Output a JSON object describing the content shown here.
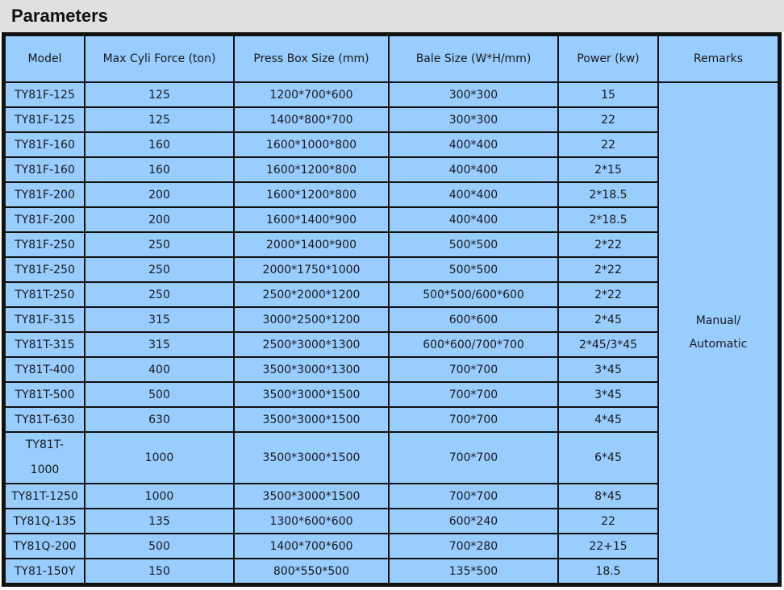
{
  "header": {
    "title": "Parameters"
  },
  "table": {
    "columns": [
      "Model",
      "Max Cyli Force  (ton)",
      "Press Box Size (mm)",
      "Bale Size  (W*H/mm)",
      "Power  (kw)",
      "Remarks"
    ],
    "rows": [
      [
        "TY81F-125",
        "125",
        "1200*700*600",
        "300*300",
        "15"
      ],
      [
        "TY81F-125",
        "125",
        "1400*800*700",
        "300*300",
        "22"
      ],
      [
        "TY81F-160",
        "160",
        "1600*1000*800",
        "400*400",
        "22"
      ],
      [
        "TY81F-160",
        "160",
        "1600*1200*800",
        "400*400",
        "2*15"
      ],
      [
        "TY81F-200",
        "200",
        "1600*1200*800",
        "400*400",
        "2*18.5"
      ],
      [
        "TY81F-200",
        "200",
        "1600*1400*900",
        "400*400",
        "2*18.5"
      ],
      [
        "TY81F-250",
        "250",
        "2000*1400*900",
        "500*500",
        "2*22"
      ],
      [
        "TY81F-250",
        "250",
        "2000*1750*1000",
        "500*500",
        "2*22"
      ],
      [
        "TY81T-250",
        "250",
        "2500*2000*1200",
        "500*500/600*600",
        "2*22"
      ],
      [
        "TY81F-315",
        "315",
        "3000*2500*1200",
        "600*600",
        "2*45"
      ],
      [
        "TY81T-315",
        "315",
        "2500*3000*1300",
        "600*600/700*700",
        "2*45/3*45"
      ],
      [
        "TY81T-400",
        "400",
        "3500*3000*1300",
        "700*700",
        "3*45"
      ],
      [
        "TY81T-500",
        "500",
        "3500*3000*1500",
        "700*700",
        "3*45"
      ],
      [
        "TY81T-630",
        "630",
        "3500*3000*1500",
        "700*700",
        "4*45"
      ],
      [
        "TY81T-1000",
        "1000",
        "3500*3000*1500",
        "700*700",
        "6*45"
      ],
      [
        "TY81T-1250",
        "1000",
        "3500*3000*1500",
        "700*700",
        "8*45"
      ],
      [
        "TY81Q-135",
        "135",
        "1300*600*600",
        "600*240",
        "22"
      ],
      [
        "TY81Q-200",
        "500",
        "1400*700*600",
        "700*280",
        "22+15"
      ],
      [
        "TY81-150Y",
        "150",
        "800*550*500",
        "135*500",
        "18.5"
      ]
    ],
    "remarks": "Manual/\nAutomatic"
  }
}
